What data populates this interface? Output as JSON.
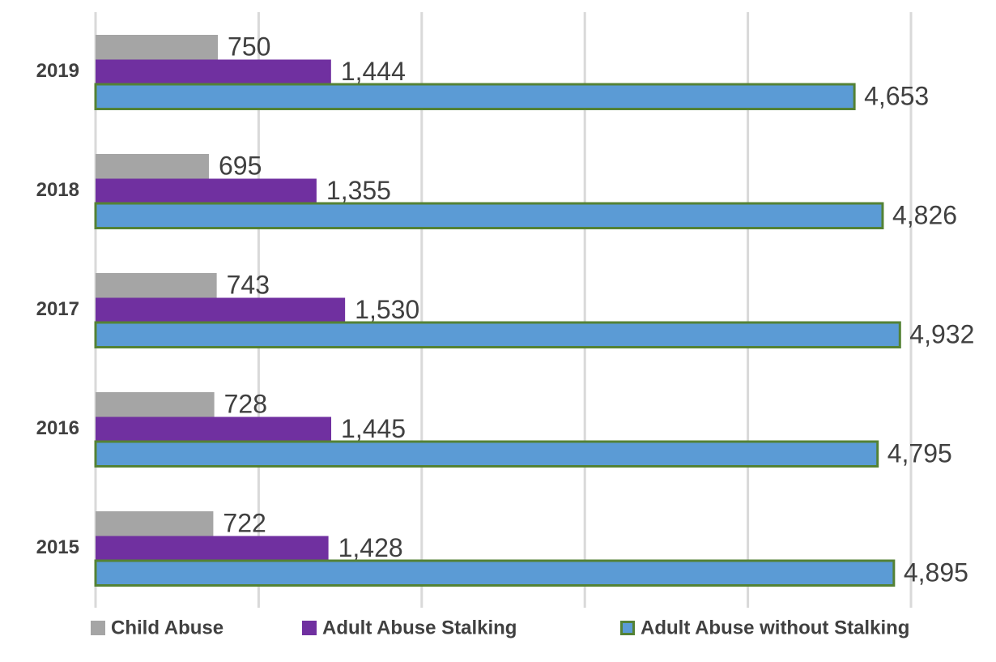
{
  "chart_data": {
    "type": "hbar",
    "categories": [
      "2019",
      "2018",
      "2017",
      "2016",
      "2015"
    ],
    "series": [
      {
        "name": "Child Abuse",
        "color": "#a5a5a5",
        "values": [
          750,
          695,
          743,
          728,
          722
        ]
      },
      {
        "name": "Adult Abuse Stalking",
        "color": "#7030a0",
        "values": [
          1444,
          1355,
          1530,
          1445,
          1428
        ],
        "value_labels": [
          "1,444",
          "1,355",
          "1,530",
          "1,445",
          "1,428"
        ]
      },
      {
        "name": "Adult Abuse without Stalking",
        "color": "#5b9bd5",
        "edge_color": "#548235",
        "values": [
          4653,
          4826,
          4932,
          4795,
          4895
        ],
        "value_labels": [
          "4,653",
          "4,826",
          "4,932",
          "4,795",
          "4,895"
        ]
      }
    ],
    "xlim": [
      0,
      5000
    ],
    "xticks": [
      0,
      1000,
      2000,
      3000,
      4000,
      5000
    ],
    "grid": true,
    "legend": "bottom"
  }
}
